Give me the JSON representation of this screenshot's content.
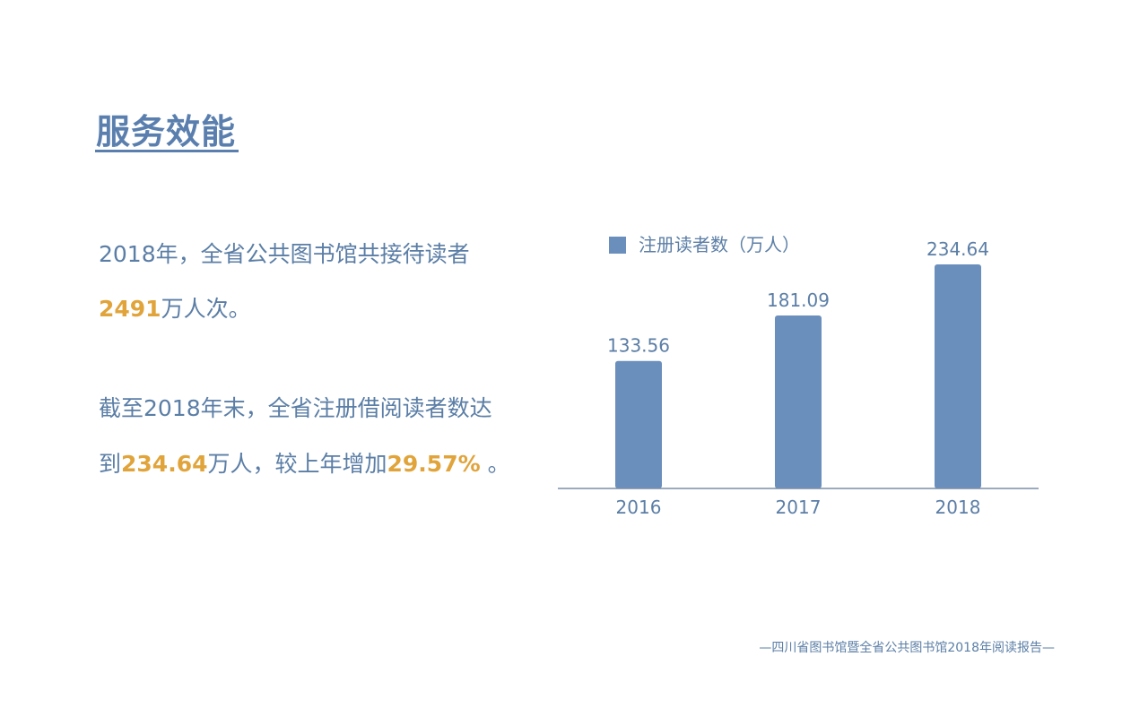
{
  "page": {
    "title": "服务效能"
  },
  "text": {
    "p1_line1": "2018年，全省公共图书馆共接待读者",
    "p1_num": "2491",
    "p1_tail": "万人次。",
    "p2_line1": "截至2018年末，全省注册借阅读者数达",
    "p2_pre": "到",
    "p2_num1": "234.64",
    "p2_mid": "万人，较上年增加",
    "p2_num2": "29.57%",
    "p2_tail": " 。"
  },
  "footer": "—四川省图书馆暨全省公共图书馆2018年阅读报告—",
  "colors": {
    "accent": "#5a7fae",
    "bar": "#6b8fbc",
    "highlight": "#e0a43b",
    "axis": "#7b8ea8"
  },
  "chart_data": {
    "type": "bar",
    "categories": [
      "2016",
      "2017",
      "2018"
    ],
    "series": [
      {
        "name": "注册读者数（万人）",
        "values": [
          133.56,
          181.09,
          234.64
        ]
      }
    ],
    "value_labels": [
      "133.56",
      "181.09",
      "234.64"
    ],
    "ylim": [
      0,
      234.64
    ],
    "grid": false,
    "legend": "top-left"
  }
}
